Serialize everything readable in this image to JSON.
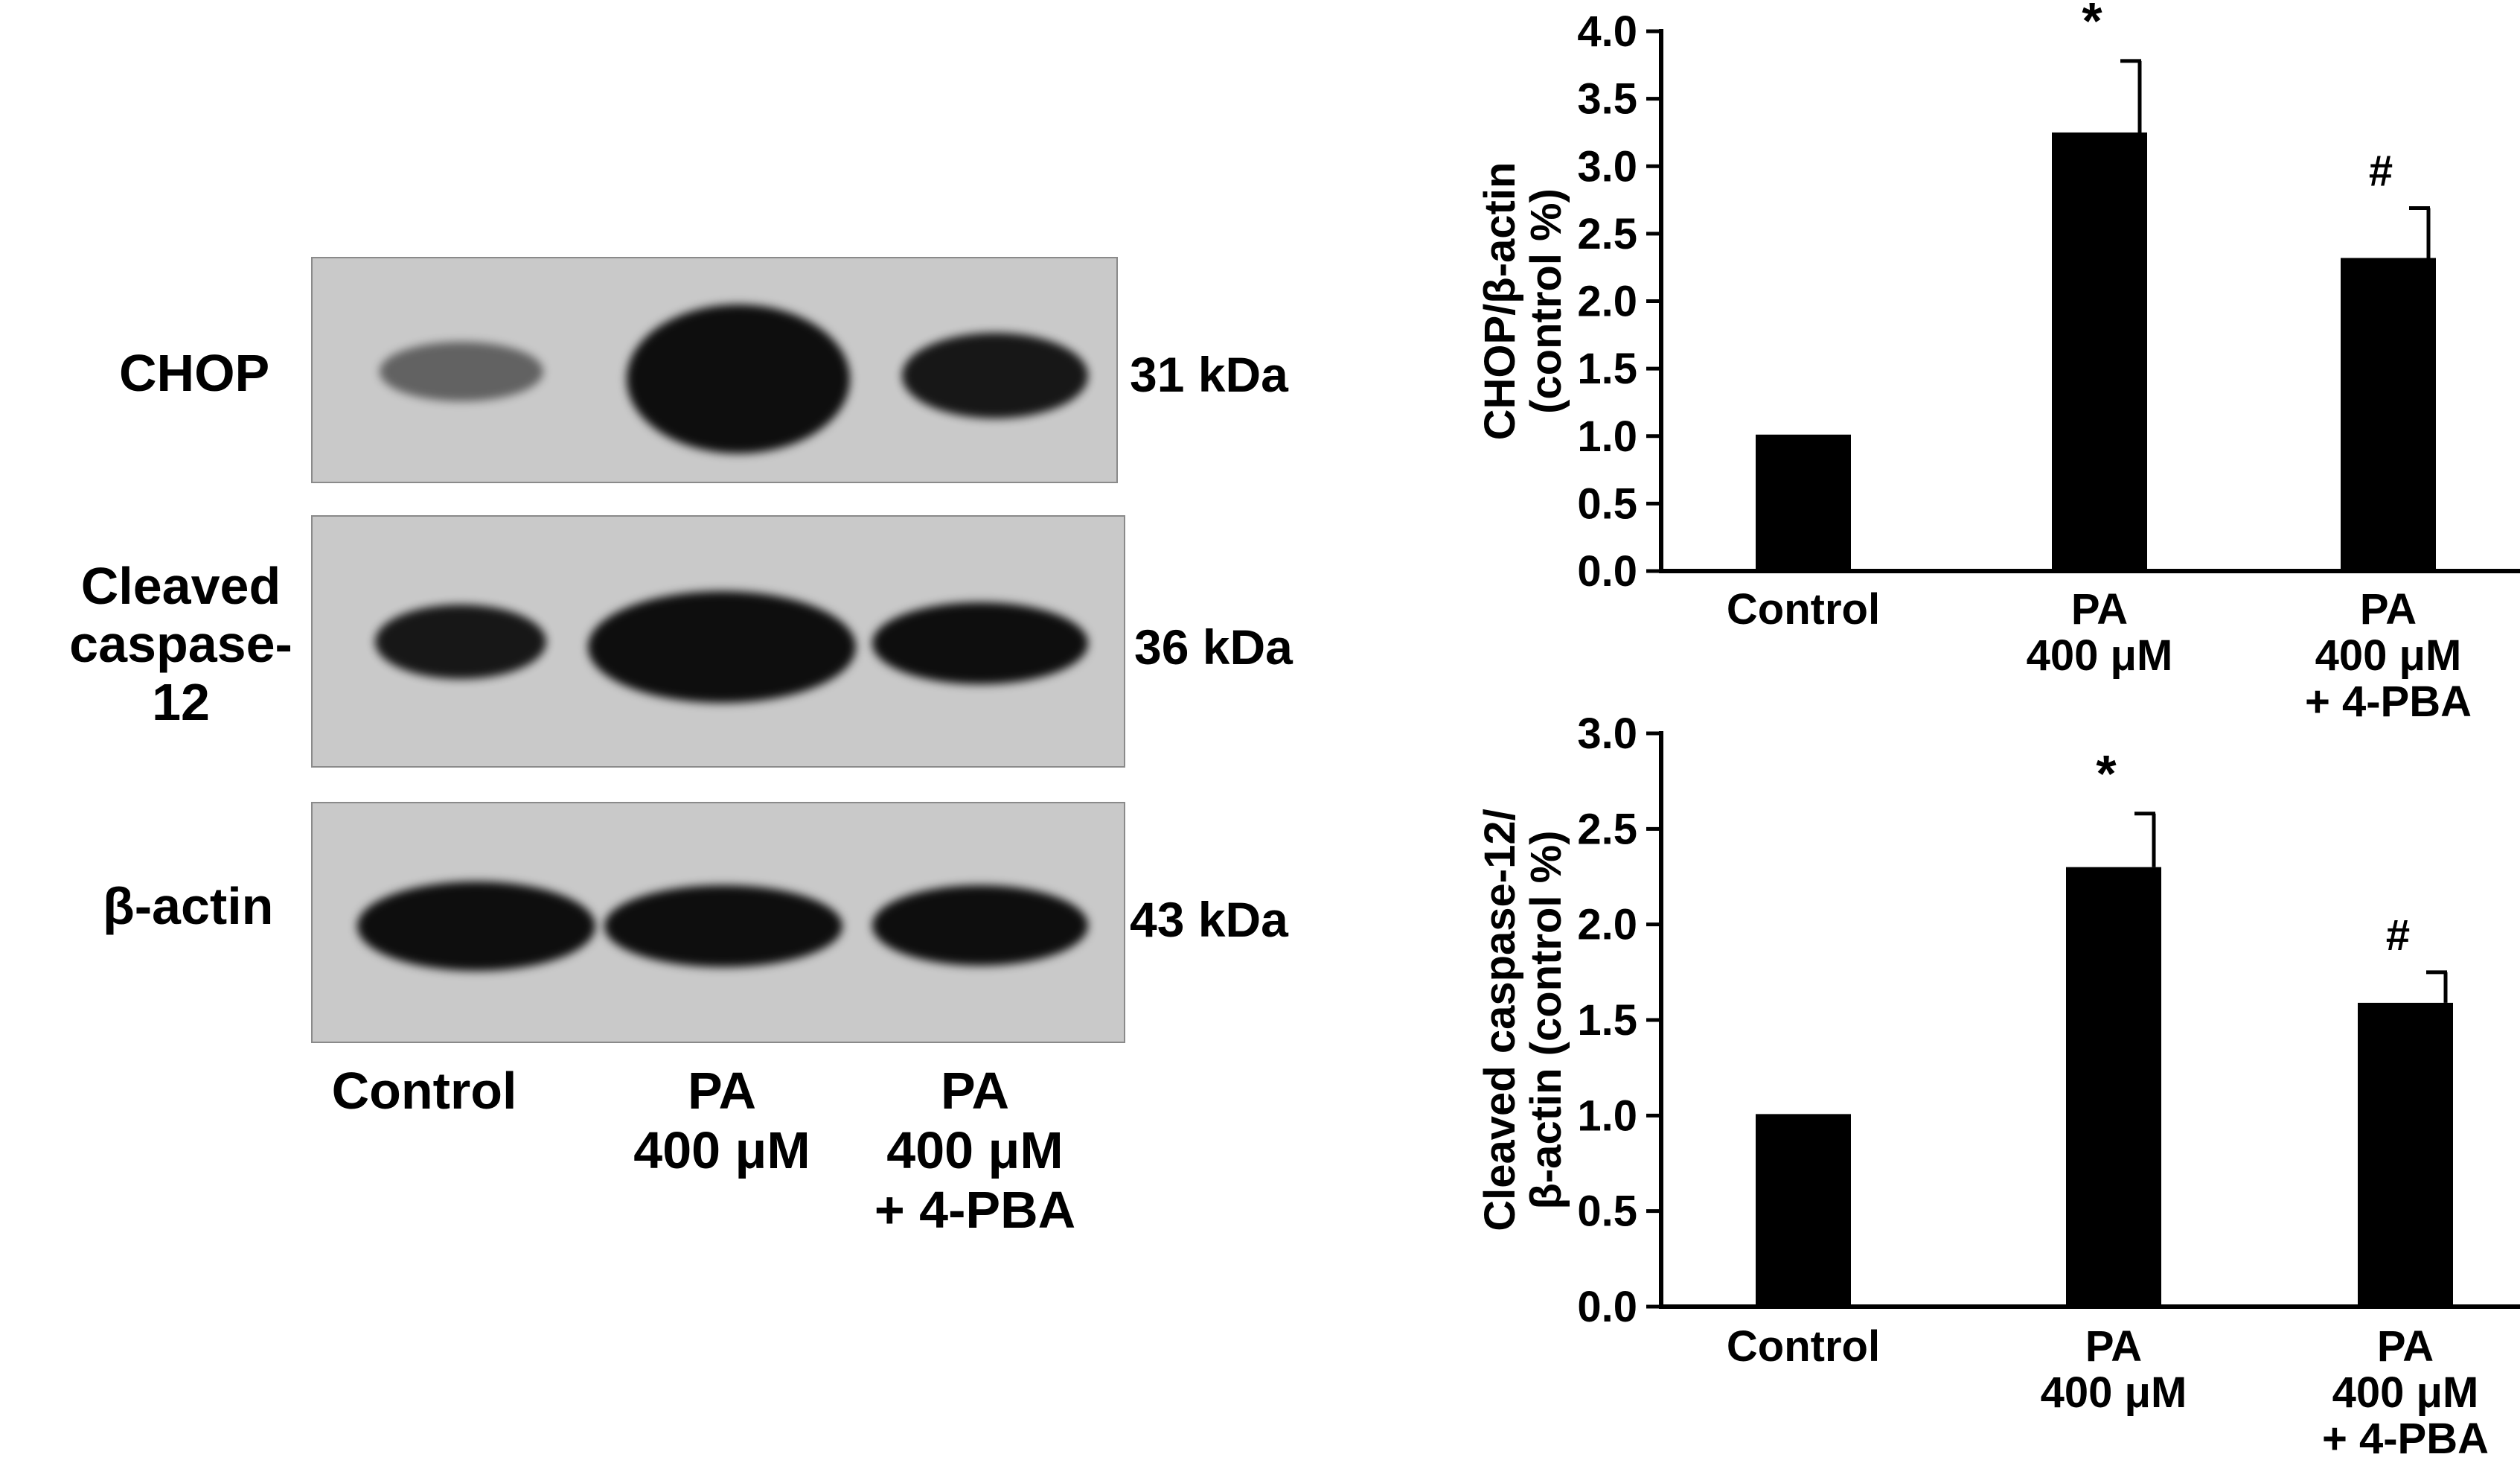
{
  "blot": {
    "rows": [
      {
        "label_lines": [
          "CHOP"
        ],
        "size": "31 kDa",
        "bands": [
          0.3,
          1.0,
          0.75
        ]
      },
      {
        "label_lines": [
          "Cleaved",
          "caspase-12"
        ],
        "size": "36 kDa",
        "bands": [
          0.6,
          1.0,
          0.75
        ]
      },
      {
        "label_lines": [
          "β-actin"
        ],
        "size": "43 kDa",
        "bands": [
          1.0,
          0.9,
          0.85
        ]
      }
    ],
    "lanes": [
      [
        "Control"
      ],
      [
        "PA",
        "400 μM"
      ],
      [
        "PA",
        "400 μM",
        "+ 4-PBA"
      ]
    ]
  },
  "chart_data": [
    {
      "type": "bar",
      "categories": [
        [
          "Control"
        ],
        [
          "PA",
          "400 μM"
        ],
        [
          "PA",
          "400 μM",
          "+ 4-PBA"
        ]
      ],
      "values": [
        1.0,
        3.25,
        2.32
      ],
      "errors": [
        0.01,
        0.53,
        0.37
      ],
      "annotations": [
        "",
        "*",
        "#"
      ],
      "ylabel_lines": [
        "CHOP/β-actin",
        "(control %)"
      ],
      "ylim": [
        0,
        4.0
      ],
      "yticks": [
        "0.0",
        "0.5",
        "1.0",
        "1.5",
        "2.0",
        "2.5",
        "3.0",
        "3.5",
        "4.0"
      ],
      "grid": false
    },
    {
      "type": "bar",
      "categories": [
        [
          "Control"
        ],
        [
          "PA",
          "400 μM"
        ],
        [
          "PA",
          "400 μM",
          "+ 4-PBA"
        ]
      ],
      "values": [
        1.0,
        2.3,
        1.59
      ],
      "errors": [
        0.01,
        0.28,
        0.16
      ],
      "annotations": [
        "",
        "*",
        "#"
      ],
      "ylabel_lines": [
        "Cleaved caspase-12/",
        "β-actin (control %)"
      ],
      "ylim": [
        0,
        3.0
      ],
      "yticks": [
        "0.0",
        "0.5",
        "1.0",
        "1.5",
        "2.0",
        "2.5",
        "3.0"
      ],
      "grid": false
    }
  ]
}
